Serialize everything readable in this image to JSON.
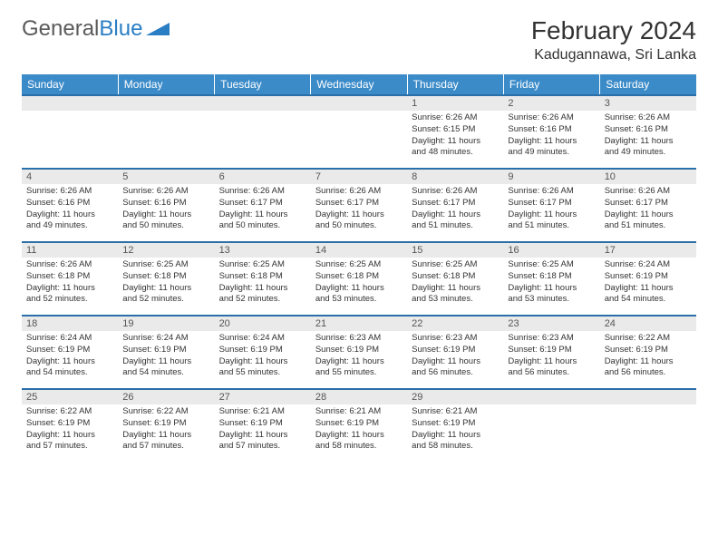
{
  "logo": {
    "part1": "General",
    "part2": "Blue"
  },
  "title": "February 2024",
  "location": "Kadugannawa, Sri Lanka",
  "colors": {
    "header_bg": "#3b8bc9",
    "header_text": "#ffffff",
    "border": "#2a6fa8",
    "daynum_bg": "#eaeaea",
    "text": "#333333",
    "logo_gray": "#5a5a5a",
    "logo_blue": "#2a7ec4"
  },
  "weekdays": [
    "Sunday",
    "Monday",
    "Tuesday",
    "Wednesday",
    "Thursday",
    "Friday",
    "Saturday"
  ],
  "weeks": [
    [
      null,
      null,
      null,
      null,
      {
        "num": "1",
        "sunrise": "Sunrise: 6:26 AM",
        "sunset": "Sunset: 6:15 PM",
        "day1": "Daylight: 11 hours",
        "day2": "and 48 minutes."
      },
      {
        "num": "2",
        "sunrise": "Sunrise: 6:26 AM",
        "sunset": "Sunset: 6:16 PM",
        "day1": "Daylight: 11 hours",
        "day2": "and 49 minutes."
      },
      {
        "num": "3",
        "sunrise": "Sunrise: 6:26 AM",
        "sunset": "Sunset: 6:16 PM",
        "day1": "Daylight: 11 hours",
        "day2": "and 49 minutes."
      }
    ],
    [
      {
        "num": "4",
        "sunrise": "Sunrise: 6:26 AM",
        "sunset": "Sunset: 6:16 PM",
        "day1": "Daylight: 11 hours",
        "day2": "and 49 minutes."
      },
      {
        "num": "5",
        "sunrise": "Sunrise: 6:26 AM",
        "sunset": "Sunset: 6:16 PM",
        "day1": "Daylight: 11 hours",
        "day2": "and 50 minutes."
      },
      {
        "num": "6",
        "sunrise": "Sunrise: 6:26 AM",
        "sunset": "Sunset: 6:17 PM",
        "day1": "Daylight: 11 hours",
        "day2": "and 50 minutes."
      },
      {
        "num": "7",
        "sunrise": "Sunrise: 6:26 AM",
        "sunset": "Sunset: 6:17 PM",
        "day1": "Daylight: 11 hours",
        "day2": "and 50 minutes."
      },
      {
        "num": "8",
        "sunrise": "Sunrise: 6:26 AM",
        "sunset": "Sunset: 6:17 PM",
        "day1": "Daylight: 11 hours",
        "day2": "and 51 minutes."
      },
      {
        "num": "9",
        "sunrise": "Sunrise: 6:26 AM",
        "sunset": "Sunset: 6:17 PM",
        "day1": "Daylight: 11 hours",
        "day2": "and 51 minutes."
      },
      {
        "num": "10",
        "sunrise": "Sunrise: 6:26 AM",
        "sunset": "Sunset: 6:17 PM",
        "day1": "Daylight: 11 hours",
        "day2": "and 51 minutes."
      }
    ],
    [
      {
        "num": "11",
        "sunrise": "Sunrise: 6:26 AM",
        "sunset": "Sunset: 6:18 PM",
        "day1": "Daylight: 11 hours",
        "day2": "and 52 minutes."
      },
      {
        "num": "12",
        "sunrise": "Sunrise: 6:25 AM",
        "sunset": "Sunset: 6:18 PM",
        "day1": "Daylight: 11 hours",
        "day2": "and 52 minutes."
      },
      {
        "num": "13",
        "sunrise": "Sunrise: 6:25 AM",
        "sunset": "Sunset: 6:18 PM",
        "day1": "Daylight: 11 hours",
        "day2": "and 52 minutes."
      },
      {
        "num": "14",
        "sunrise": "Sunrise: 6:25 AM",
        "sunset": "Sunset: 6:18 PM",
        "day1": "Daylight: 11 hours",
        "day2": "and 53 minutes."
      },
      {
        "num": "15",
        "sunrise": "Sunrise: 6:25 AM",
        "sunset": "Sunset: 6:18 PM",
        "day1": "Daylight: 11 hours",
        "day2": "and 53 minutes."
      },
      {
        "num": "16",
        "sunrise": "Sunrise: 6:25 AM",
        "sunset": "Sunset: 6:18 PM",
        "day1": "Daylight: 11 hours",
        "day2": "and 53 minutes."
      },
      {
        "num": "17",
        "sunrise": "Sunrise: 6:24 AM",
        "sunset": "Sunset: 6:19 PM",
        "day1": "Daylight: 11 hours",
        "day2": "and 54 minutes."
      }
    ],
    [
      {
        "num": "18",
        "sunrise": "Sunrise: 6:24 AM",
        "sunset": "Sunset: 6:19 PM",
        "day1": "Daylight: 11 hours",
        "day2": "and 54 minutes."
      },
      {
        "num": "19",
        "sunrise": "Sunrise: 6:24 AM",
        "sunset": "Sunset: 6:19 PM",
        "day1": "Daylight: 11 hours",
        "day2": "and 54 minutes."
      },
      {
        "num": "20",
        "sunrise": "Sunrise: 6:24 AM",
        "sunset": "Sunset: 6:19 PM",
        "day1": "Daylight: 11 hours",
        "day2": "and 55 minutes."
      },
      {
        "num": "21",
        "sunrise": "Sunrise: 6:23 AM",
        "sunset": "Sunset: 6:19 PM",
        "day1": "Daylight: 11 hours",
        "day2": "and 55 minutes."
      },
      {
        "num": "22",
        "sunrise": "Sunrise: 6:23 AM",
        "sunset": "Sunset: 6:19 PM",
        "day1": "Daylight: 11 hours",
        "day2": "and 56 minutes."
      },
      {
        "num": "23",
        "sunrise": "Sunrise: 6:23 AM",
        "sunset": "Sunset: 6:19 PM",
        "day1": "Daylight: 11 hours",
        "day2": "and 56 minutes."
      },
      {
        "num": "24",
        "sunrise": "Sunrise: 6:22 AM",
        "sunset": "Sunset: 6:19 PM",
        "day1": "Daylight: 11 hours",
        "day2": "and 56 minutes."
      }
    ],
    [
      {
        "num": "25",
        "sunrise": "Sunrise: 6:22 AM",
        "sunset": "Sunset: 6:19 PM",
        "day1": "Daylight: 11 hours",
        "day2": "and 57 minutes."
      },
      {
        "num": "26",
        "sunrise": "Sunrise: 6:22 AM",
        "sunset": "Sunset: 6:19 PM",
        "day1": "Daylight: 11 hours",
        "day2": "and 57 minutes."
      },
      {
        "num": "27",
        "sunrise": "Sunrise: 6:21 AM",
        "sunset": "Sunset: 6:19 PM",
        "day1": "Daylight: 11 hours",
        "day2": "and 57 minutes."
      },
      {
        "num": "28",
        "sunrise": "Sunrise: 6:21 AM",
        "sunset": "Sunset: 6:19 PM",
        "day1": "Daylight: 11 hours",
        "day2": "and 58 minutes."
      },
      {
        "num": "29",
        "sunrise": "Sunrise: 6:21 AM",
        "sunset": "Sunset: 6:19 PM",
        "day1": "Daylight: 11 hours",
        "day2": "and 58 minutes."
      },
      null,
      null
    ]
  ]
}
